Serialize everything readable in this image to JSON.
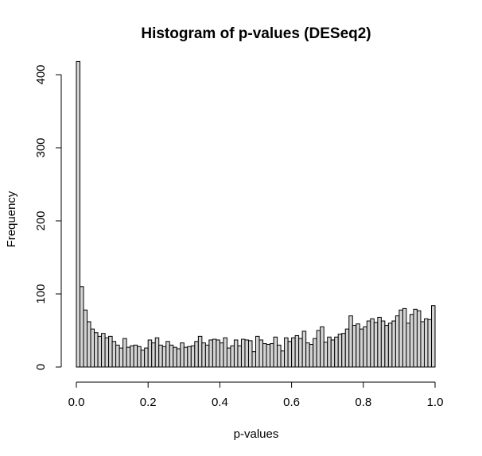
{
  "chart_data": {
    "type": "bar",
    "title": "Histogram of p-values (DESeq2)",
    "xlabel": "p-values",
    "ylabel": "Frequency",
    "xlim": [
      0,
      1
    ],
    "ylim": [
      0,
      420
    ],
    "bin_width": 0.01,
    "x_ticks": [
      0.0,
      0.2,
      0.4,
      0.6,
      0.8,
      1.0
    ],
    "x_tick_labels": [
      "0.0",
      "0.2",
      "0.4",
      "0.6",
      "0.8",
      "1.0"
    ],
    "y_ticks": [
      0,
      100,
      200,
      300,
      400
    ],
    "y_tick_labels": [
      "0",
      "100",
      "200",
      "300",
      "400"
    ],
    "grid": false,
    "bar_color": "#d3d3d3",
    "edge_color": "#000000",
    "bin_starts": [
      0.0,
      0.01,
      0.02,
      0.03,
      0.04,
      0.05,
      0.06,
      0.07,
      0.08,
      0.09,
      0.1,
      0.11,
      0.12,
      0.13,
      0.14,
      0.15,
      0.16,
      0.17,
      0.18,
      0.19,
      0.2,
      0.21,
      0.22,
      0.23,
      0.24,
      0.25,
      0.26,
      0.27,
      0.28,
      0.29,
      0.3,
      0.31,
      0.32,
      0.33,
      0.34,
      0.35,
      0.36,
      0.37,
      0.38,
      0.39,
      0.4,
      0.41,
      0.42,
      0.43,
      0.44,
      0.45,
      0.46,
      0.47,
      0.48,
      0.49,
      0.5,
      0.51,
      0.52,
      0.53,
      0.54,
      0.55,
      0.56,
      0.57,
      0.58,
      0.59,
      0.6,
      0.61,
      0.62,
      0.63,
      0.64,
      0.65,
      0.66,
      0.67,
      0.68,
      0.69,
      0.7,
      0.71,
      0.72,
      0.73,
      0.74,
      0.75,
      0.76,
      0.77,
      0.78,
      0.79,
      0.8,
      0.81,
      0.82,
      0.83,
      0.84,
      0.85,
      0.86,
      0.87,
      0.88,
      0.89,
      0.9,
      0.91,
      0.92,
      0.93,
      0.94,
      0.95,
      0.96,
      0.97,
      0.98,
      0.99
    ],
    "values": [
      418,
      110,
      78,
      62,
      52,
      47,
      42,
      46,
      40,
      42,
      35,
      30,
      26,
      39,
      27,
      29,
      30,
      28,
      23,
      26,
      37,
      33,
      40,
      30,
      28,
      35,
      30,
      27,
      25,
      33,
      27,
      28,
      29,
      35,
      42,
      33,
      30,
      37,
      38,
      37,
      33,
      40,
      26,
      29,
      37,
      29,
      38,
      37,
      36,
      21,
      42,
      37,
      32,
      31,
      32,
      41,
      30,
      22,
      40,
      35,
      40,
      43,
      39,
      49,
      33,
      31,
      39,
      50,
      55,
      34,
      41,
      37,
      41,
      45,
      46,
      52,
      70,
      57,
      59,
      52,
      55,
      63,
      66,
      61,
      68,
      63,
      57,
      60,
      63,
      70,
      78,
      80,
      60,
      72,
      79,
      77,
      62,
      66,
      65,
      84
    ]
  }
}
